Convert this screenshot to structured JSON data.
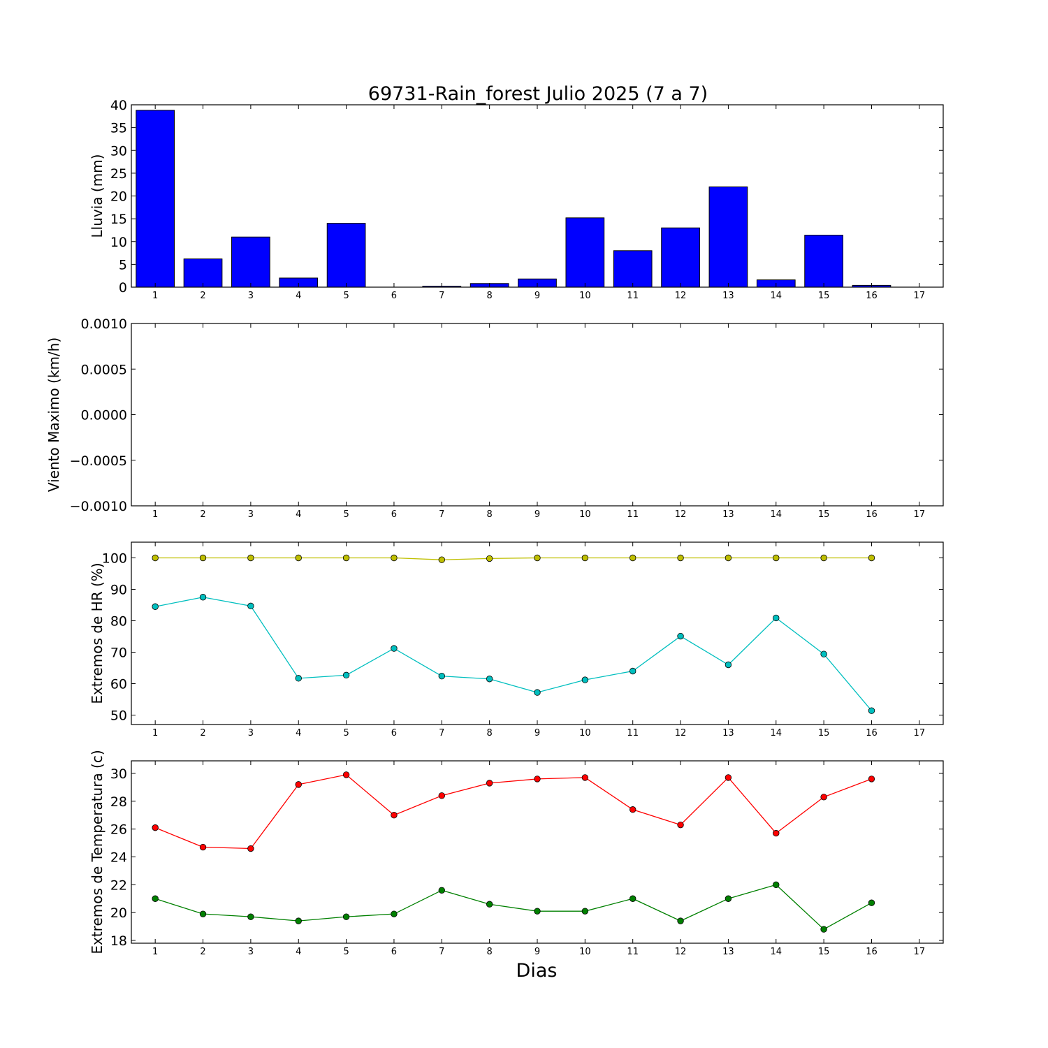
{
  "title": "69731-Rain_forest Julio 2025  (7 a 7)",
  "xlabel": "Dias",
  "x_ticks": [
    "1",
    "2",
    "3",
    "4",
    "5",
    "6",
    "7",
    "8",
    "9",
    "10",
    "11",
    "12",
    "13",
    "14",
    "15",
    "16",
    "17"
  ],
  "chart_data": [
    {
      "type": "bar",
      "ylabel": "Lluvia (mm)",
      "ylim": [
        0,
        40
      ],
      "xlim": [
        0.5,
        17.5
      ],
      "y_ticks": [
        "0",
        "5",
        "10",
        "15",
        "20",
        "25",
        "30",
        "35",
        "40"
      ],
      "y_tick_values": [
        0,
        5,
        10,
        15,
        20,
        25,
        30,
        35,
        40
      ],
      "bar_color": "#0000ff",
      "x": [
        1,
        2,
        3,
        4,
        5,
        6,
        7,
        8,
        9,
        10,
        11,
        12,
        13,
        14,
        15,
        16
      ],
      "values": [
        38.8,
        6.2,
        11.0,
        2.0,
        14.0,
        0.0,
        0.2,
        0.8,
        1.8,
        15.2,
        8.0,
        13.0,
        22.0,
        1.6,
        11.4,
        0.4
      ]
    },
    {
      "type": "line",
      "ylabel": "Viento Maximo (km/h)",
      "ylim": [
        -0.001,
        0.001
      ],
      "xlim": [
        0.5,
        17.5
      ],
      "y_ticks": [
        "−0.0010",
        "−0.0005",
        "0.0000",
        "0.0005",
        "0.0010"
      ],
      "y_tick_values": [
        -0.001,
        -0.0005,
        0.0,
        0.0005,
        0.001
      ],
      "series": []
    },
    {
      "type": "line",
      "ylabel": "Extremos de HR (%)",
      "ylim": [
        47,
        105
      ],
      "xlim": [
        0.5,
        17.5
      ],
      "y_ticks": [
        "50",
        "60",
        "70",
        "80",
        "90",
        "100"
      ],
      "y_tick_values": [
        50,
        60,
        70,
        80,
        90,
        100
      ],
      "series": [
        {
          "color": "#bfbf00",
          "x": [
            1,
            2,
            3,
            4,
            5,
            6,
            7,
            8,
            9,
            10,
            11,
            12,
            13,
            14,
            15,
            16
          ],
          "values": [
            100,
            100,
            100,
            100,
            100,
            100,
            99.4,
            99.8,
            100,
            100,
            100,
            100,
            100,
            100,
            100,
            100
          ]
        },
        {
          "color": "#00bfbf",
          "x": [
            1,
            2,
            3,
            4,
            5,
            6,
            7,
            8,
            9,
            10,
            11,
            12,
            13,
            14,
            15,
            16
          ],
          "values": [
            84.5,
            87.5,
            84.7,
            61.7,
            62.7,
            71.2,
            62.4,
            61.5,
            57.2,
            61.2,
            64.0,
            75.1,
            66.0,
            80.9,
            69.4,
            51.4
          ]
        }
      ]
    },
    {
      "type": "line",
      "ylabel": "Extremos de Temperatura (c)",
      "ylim": [
        17.8,
        30.9
      ],
      "xlim": [
        0.5,
        17.5
      ],
      "y_ticks": [
        "18",
        "20",
        "22",
        "24",
        "26",
        "28",
        "30"
      ],
      "y_tick_values": [
        18,
        20,
        22,
        24,
        26,
        28,
        30
      ],
      "series": [
        {
          "color": "#ff0000",
          "x": [
            1,
            2,
            3,
            4,
            5,
            6,
            7,
            8,
            9,
            10,
            11,
            12,
            13,
            14,
            15,
            16
          ],
          "values": [
            26.1,
            24.7,
            24.6,
            29.2,
            29.9,
            27.0,
            28.4,
            29.3,
            29.6,
            29.7,
            27.4,
            26.3,
            29.7,
            25.7,
            28.3,
            29.6
          ]
        },
        {
          "color": "#008000",
          "x": [
            1,
            2,
            3,
            4,
            5,
            6,
            7,
            8,
            9,
            10,
            11,
            12,
            13,
            14,
            15,
            16
          ],
          "values": [
            21.0,
            19.9,
            19.7,
            19.4,
            19.7,
            19.9,
            21.6,
            20.6,
            20.1,
            20.1,
            21.0,
            19.4,
            21.0,
            22.0,
            18.8,
            20.7
          ]
        }
      ]
    }
  ]
}
